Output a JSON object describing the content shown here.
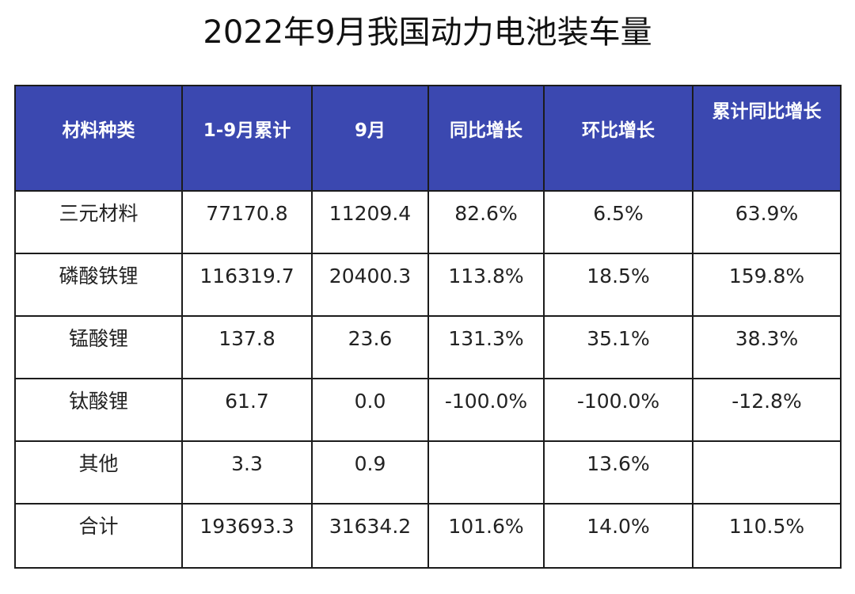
{
  "title": "2022年9月我国动力电池装车量",
  "table": {
    "headers": [
      "材料种类",
      "1-9月累计",
      "9月",
      "同比增长",
      "环比增长",
      "累计同比增长"
    ],
    "rows": [
      [
        "三元材料",
        "77170.8",
        "11209.4",
        "82.6%",
        "6.5%",
        "63.9%"
      ],
      [
        "磷酸铁锂",
        "116319.7",
        "20400.3",
        "113.8%",
        "18.5%",
        "159.8%"
      ],
      [
        "锰酸锂",
        "137.8",
        "23.6",
        "131.3%",
        "35.1%",
        "38.3%"
      ],
      [
        "钛酸锂",
        "61.7",
        "0.0",
        "-100.0%",
        "-100.0%",
        "-12.8%"
      ],
      [
        "其他",
        "3.3",
        "0.9",
        "",
        "13.6%",
        ""
      ],
      [
        "合计",
        "193693.3",
        "31634.2",
        "101.6%",
        "14.0%",
        "110.5%"
      ]
    ]
  },
  "colors": {
    "header_background": "#3b48b0",
    "header_text": "#ffffff",
    "border": "#1c1c1c"
  }
}
